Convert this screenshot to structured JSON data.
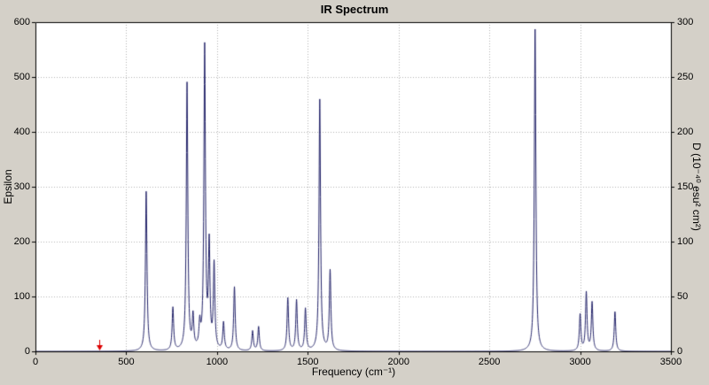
{
  "window": {
    "background": "#d4d0c8"
  },
  "chart_data": {
    "type": "line",
    "title": "IR Spectrum",
    "xlabel": "Frequency (cm⁻¹)",
    "ylabel_left": "Epsilon",
    "ylabel_right": "D (10⁻⁴⁰ esu² cm²)",
    "xlim": [
      0,
      3500
    ],
    "ylim_left": [
      0,
      600
    ],
    "ylim_right": [
      0,
      300
    ],
    "x_ticks": [
      0,
      500,
      1000,
      1500,
      2000,
      2500,
      3000,
      3500
    ],
    "y_ticks_left": [
      0,
      100,
      200,
      300,
      400,
      500,
      600
    ],
    "y_ticks_right": [
      0,
      50,
      100,
      150,
      200,
      250,
      300
    ],
    "grid": true,
    "grid_style": "dotted",
    "grid_color": "#b4b4b4",
    "plot_bg": "#ffffff",
    "border_color": "#000000",
    "line_color": "#24246a",
    "lorentzian_hwhm": 5,
    "peaks": [
      {
        "x": 610,
        "epsilon": 291
      },
      {
        "x": 757,
        "epsilon": 78
      },
      {
        "x": 835,
        "epsilon": 487
      },
      {
        "x": 868,
        "epsilon": 58
      },
      {
        "x": 905,
        "epsilon": 42
      },
      {
        "x": 932,
        "epsilon": 551
      },
      {
        "x": 957,
        "epsilon": 186
      },
      {
        "x": 984,
        "epsilon": 154
      },
      {
        "x": 1036,
        "epsilon": 50
      },
      {
        "x": 1096,
        "epsilon": 116
      },
      {
        "x": 1196,
        "epsilon": 36
      },
      {
        "x": 1229,
        "epsilon": 44
      },
      {
        "x": 1390,
        "epsilon": 96
      },
      {
        "x": 1438,
        "epsilon": 92
      },
      {
        "x": 1487,
        "epsilon": 76
      },
      {
        "x": 1566,
        "epsilon": 458
      },
      {
        "x": 1623,
        "epsilon": 146
      },
      {
        "x": 2752,
        "epsilon": 587
      },
      {
        "x": 3000,
        "epsilon": 66
      },
      {
        "x": 3034,
        "epsilon": 106
      },
      {
        "x": 3066,
        "epsilon": 88
      },
      {
        "x": 3192,
        "epsilon": 72
      }
    ],
    "marker": {
      "x": 350,
      "color": "#dd0000",
      "shape": "down-arrow"
    }
  }
}
